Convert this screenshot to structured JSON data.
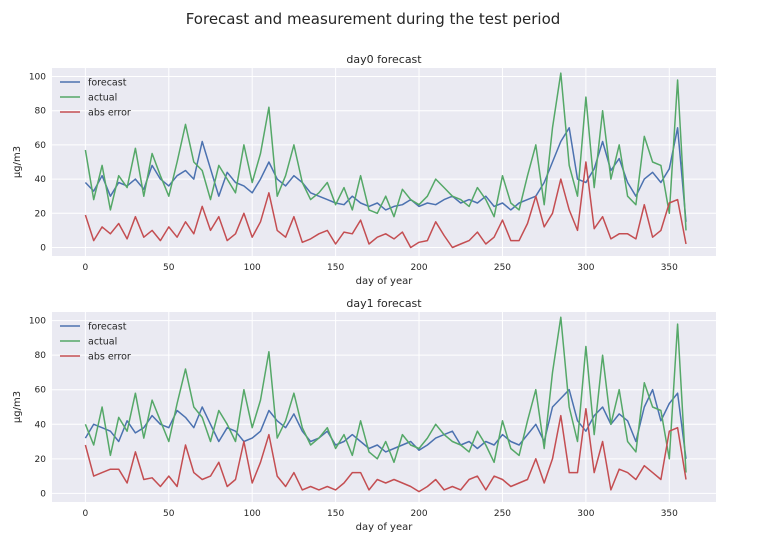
{
  "figure": {
    "suptitle": "Forecast and measurement during the test period"
  },
  "chart_data": [
    {
      "type": "line",
      "title": "day0 forecast",
      "xlabel": "day of year",
      "ylabel": "µg/m3",
      "xlim": [
        -20,
        378
      ],
      "ylim": [
        -5,
        105
      ],
      "xticks": [
        0,
        50,
        100,
        150,
        200,
        250,
        300,
        350
      ],
      "yticks": [
        0,
        20,
        40,
        60,
        80,
        100
      ],
      "grid": true,
      "legend_position": "top-left",
      "series": [
        {
          "name": "forecast",
          "color": "#4c72b0",
          "x": [
            0,
            5,
            10,
            15,
            20,
            25,
            30,
            35,
            40,
            45,
            50,
            55,
            60,
            65,
            70,
            75,
            80,
            85,
            90,
            95,
            100,
            105,
            110,
            115,
            120,
            125,
            130,
            135,
            140,
            145,
            150,
            155,
            160,
            165,
            170,
            175,
            180,
            185,
            190,
            195,
            200,
            205,
            210,
            215,
            220,
            225,
            230,
            235,
            240,
            245,
            250,
            255,
            260,
            265,
            270,
            275,
            280,
            285,
            290,
            295,
            300,
            305,
            310,
            315,
            320,
            325,
            330,
            335,
            340,
            345,
            350,
            355,
            360
          ],
          "values": [
            38,
            33,
            42,
            30,
            38,
            36,
            40,
            34,
            48,
            40,
            36,
            42,
            45,
            40,
            62,
            46,
            30,
            44,
            38,
            36,
            32,
            40,
            50,
            40,
            36,
            42,
            38,
            32,
            30,
            28,
            26,
            25,
            30,
            26,
            24,
            26,
            22,
            24,
            25,
            28,
            24,
            26,
            25,
            28,
            30,
            26,
            28,
            26,
            30,
            24,
            26,
            22,
            26,
            28,
            30,
            38,
            50,
            62,
            70,
            40,
            38,
            46,
            62,
            45,
            52,
            38,
            30,
            40,
            44,
            38,
            46,
            70,
            15
          ]
        },
        {
          "name": "actual",
          "color": "#55a868",
          "x": [
            0,
            5,
            10,
            15,
            20,
            25,
            30,
            35,
            40,
            45,
            50,
            55,
            60,
            65,
            70,
            75,
            80,
            85,
            90,
            95,
            100,
            105,
            110,
            115,
            120,
            125,
            130,
            135,
            140,
            145,
            150,
            155,
            160,
            165,
            170,
            175,
            180,
            185,
            190,
            195,
            200,
            205,
            210,
            215,
            220,
            225,
            230,
            235,
            240,
            245,
            250,
            255,
            260,
            265,
            270,
            275,
            280,
            285,
            290,
            295,
            300,
            305,
            310,
            315,
            320,
            325,
            330,
            335,
            340,
            345,
            350,
            355,
            360
          ],
          "values": [
            57,
            28,
            48,
            22,
            42,
            35,
            58,
            30,
            55,
            42,
            30,
            50,
            72,
            50,
            45,
            28,
            48,
            40,
            32,
            60,
            38,
            55,
            82,
            30,
            42,
            60,
            38,
            28,
            32,
            38,
            25,
            35,
            22,
            42,
            22,
            20,
            30,
            18,
            34,
            28,
            25,
            30,
            40,
            35,
            30,
            28,
            24,
            35,
            28,
            18,
            42,
            26,
            22,
            42,
            60,
            25,
            70,
            102,
            48,
            30,
            88,
            35,
            80,
            40,
            60,
            30,
            25,
            65,
            50,
            48,
            20,
            98,
            10
          ]
        },
        {
          "name": "abs error",
          "color": "#c44e52",
          "x": [
            0,
            5,
            10,
            15,
            20,
            25,
            30,
            35,
            40,
            45,
            50,
            55,
            60,
            65,
            70,
            75,
            80,
            85,
            90,
            95,
            100,
            105,
            110,
            115,
            120,
            125,
            130,
            135,
            140,
            145,
            150,
            155,
            160,
            165,
            170,
            175,
            180,
            185,
            190,
            195,
            200,
            205,
            210,
            215,
            220,
            225,
            230,
            235,
            240,
            245,
            250,
            255,
            260,
            265,
            270,
            275,
            280,
            285,
            290,
            295,
            300,
            305,
            310,
            315,
            320,
            325,
            330,
            335,
            340,
            345,
            350,
            355,
            360
          ],
          "values": [
            19,
            4,
            12,
            8,
            14,
            5,
            18,
            6,
            10,
            4,
            12,
            6,
            15,
            8,
            24,
            10,
            18,
            4,
            8,
            20,
            6,
            15,
            32,
            10,
            6,
            18,
            3,
            5,
            8,
            10,
            2,
            9,
            8,
            16,
            2,
            6,
            8,
            5,
            9,
            0,
            3,
            4,
            15,
            7,
            0,
            2,
            4,
            9,
            2,
            6,
            16,
            4,
            4,
            14,
            30,
            12,
            20,
            40,
            22,
            10,
            50,
            11,
            18,
            5,
            8,
            8,
            5,
            25,
            6,
            10,
            26,
            28,
            2
          ]
        }
      ]
    },
    {
      "type": "line",
      "title": "day1 forecast",
      "xlabel": "day of year",
      "ylabel": "µg/m3",
      "xlim": [
        -20,
        378
      ],
      "ylim": [
        -5,
        105
      ],
      "xticks": [
        0,
        50,
        100,
        150,
        200,
        250,
        300,
        350
      ],
      "yticks": [
        0,
        20,
        40,
        60,
        80,
        100
      ],
      "grid": true,
      "legend_position": "top-left",
      "series": [
        {
          "name": "forecast",
          "color": "#4c72b0",
          "x": [
            0,
            5,
            10,
            15,
            20,
            25,
            30,
            35,
            40,
            45,
            50,
            55,
            60,
            65,
            70,
            75,
            80,
            85,
            90,
            95,
            100,
            105,
            110,
            115,
            120,
            125,
            130,
            135,
            140,
            145,
            150,
            155,
            160,
            165,
            170,
            175,
            180,
            185,
            190,
            195,
            200,
            205,
            210,
            215,
            220,
            225,
            230,
            235,
            240,
            245,
            250,
            255,
            260,
            265,
            270,
            275,
            280,
            285,
            290,
            295,
            300,
            305,
            310,
            315,
            320,
            325,
            330,
            335,
            340,
            345,
            350,
            355,
            360
          ],
          "values": [
            32,
            40,
            38,
            36,
            30,
            42,
            35,
            38,
            45,
            40,
            38,
            48,
            44,
            38,
            50,
            40,
            30,
            38,
            36,
            30,
            32,
            36,
            48,
            42,
            38,
            46,
            36,
            30,
            32,
            36,
            28,
            30,
            34,
            30,
            26,
            28,
            24,
            26,
            28,
            30,
            25,
            28,
            32,
            34,
            36,
            28,
            30,
            26,
            30,
            28,
            34,
            30,
            28,
            34,
            40,
            30,
            50,
            55,
            60,
            42,
            36,
            45,
            50,
            40,
            46,
            42,
            30,
            50,
            60,
            42,
            52,
            58,
            20
          ]
        },
        {
          "name": "actual",
          "color": "#55a868",
          "x": [
            0,
            5,
            10,
            15,
            20,
            25,
            30,
            35,
            40,
            45,
            50,
            55,
            60,
            65,
            70,
            75,
            80,
            85,
            90,
            95,
            100,
            105,
            110,
            115,
            120,
            125,
            130,
            135,
            140,
            145,
            150,
            155,
            160,
            165,
            170,
            175,
            180,
            185,
            190,
            195,
            200,
            205,
            210,
            215,
            220,
            225,
            230,
            235,
            240,
            245,
            250,
            255,
            260,
            265,
            270,
            275,
            280,
            285,
            290,
            295,
            300,
            305,
            310,
            315,
            320,
            325,
            330,
            335,
            340,
            345,
            350,
            355,
            360
          ],
          "values": [
            40,
            28,
            50,
            22,
            44,
            36,
            58,
            32,
            54,
            42,
            30,
            52,
            72,
            50,
            44,
            30,
            48,
            40,
            30,
            60,
            38,
            54,
            82,
            32,
            42,
            58,
            38,
            28,
            32,
            38,
            26,
            34,
            22,
            42,
            24,
            20,
            30,
            18,
            34,
            28,
            26,
            32,
            40,
            34,
            30,
            28,
            24,
            36,
            28,
            18,
            42,
            26,
            22,
            42,
            60,
            26,
            70,
            102,
            50,
            30,
            85,
            34,
            80,
            40,
            60,
            30,
            24,
            64,
            50,
            48,
            20,
            98,
            12
          ]
        },
        {
          "name": "abs error",
          "color": "#c44e52",
          "x": [
            0,
            5,
            10,
            15,
            20,
            25,
            30,
            35,
            40,
            45,
            50,
            55,
            60,
            65,
            70,
            75,
            80,
            85,
            90,
            95,
            100,
            105,
            110,
            115,
            120,
            125,
            130,
            135,
            140,
            145,
            150,
            155,
            160,
            165,
            170,
            175,
            180,
            185,
            190,
            195,
            200,
            205,
            210,
            215,
            220,
            225,
            230,
            235,
            240,
            245,
            250,
            255,
            260,
            265,
            270,
            275,
            280,
            285,
            290,
            295,
            300,
            305,
            310,
            315,
            320,
            325,
            330,
            335,
            340,
            345,
            350,
            355,
            360
          ],
          "values": [
            28,
            10,
            12,
            14,
            14,
            6,
            24,
            8,
            9,
            4,
            10,
            4,
            28,
            12,
            8,
            10,
            18,
            4,
            8,
            30,
            6,
            18,
            34,
            10,
            4,
            12,
            2,
            4,
            2,
            4,
            2,
            6,
            12,
            12,
            2,
            8,
            6,
            8,
            6,
            4,
            1,
            4,
            8,
            2,
            4,
            2,
            8,
            10,
            2,
            10,
            8,
            4,
            6,
            8,
            20,
            6,
            20,
            45,
            12,
            12,
            49,
            12,
            30,
            2,
            14,
            12,
            8,
            16,
            12,
            8,
            36,
            38,
            8
          ]
        }
      ]
    }
  ]
}
